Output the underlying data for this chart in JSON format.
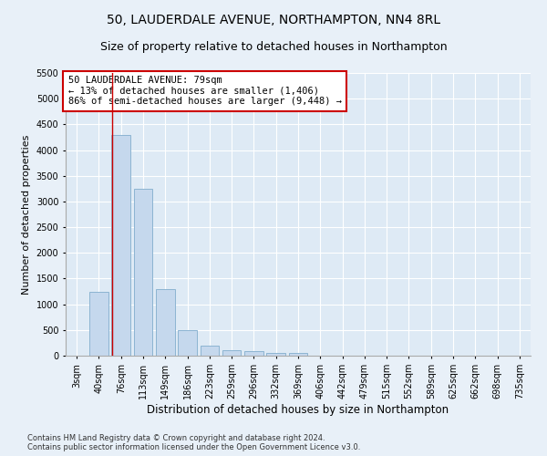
{
  "title": "50, LAUDERDALE AVENUE, NORTHAMPTON, NN4 8RL",
  "subtitle": "Size of property relative to detached houses in Northampton",
  "xlabel": "Distribution of detached houses by size in Northampton",
  "ylabel": "Number of detached properties",
  "footnote": "Contains HM Land Registry data © Crown copyright and database right 2024.\nContains public sector information licensed under the Open Government Licence v3.0.",
  "categories": [
    "3sqm",
    "40sqm",
    "76sqm",
    "113sqm",
    "149sqm",
    "186sqm",
    "223sqm",
    "259sqm",
    "296sqm",
    "332sqm",
    "369sqm",
    "406sqm",
    "442sqm",
    "479sqm",
    "515sqm",
    "552sqm",
    "589sqm",
    "625sqm",
    "662sqm",
    "698sqm",
    "735sqm"
  ],
  "bar_values": [
    0,
    1250,
    4300,
    3250,
    1300,
    500,
    200,
    100,
    80,
    60,
    50,
    0,
    0,
    0,
    0,
    0,
    0,
    0,
    0,
    0,
    0
  ],
  "bar_color": "#c5d8ed",
  "bar_edge_color": "#8cb4d2",
  "property_line_x": 1.62,
  "property_line_color": "#cc0000",
  "annotation_text": "50 LAUDERDALE AVENUE: 79sqm\n← 13% of detached houses are smaller (1,406)\n86% of semi-detached houses are larger (9,448) →",
  "annotation_box_color": "#ffffff",
  "annotation_box_edge": "#cc0000",
  "ylim": [
    0,
    5500
  ],
  "yticks": [
    0,
    500,
    1000,
    1500,
    2000,
    2500,
    3000,
    3500,
    4000,
    4500,
    5000,
    5500
  ],
  "bg_color": "#e8f0f8",
  "plot_bg_color": "#deeaf5",
  "grid_color": "#ffffff",
  "title_fontsize": 10,
  "subtitle_fontsize": 9,
  "tick_fontsize": 7,
  "label_fontsize": 8.5,
  "ylabel_fontsize": 8
}
